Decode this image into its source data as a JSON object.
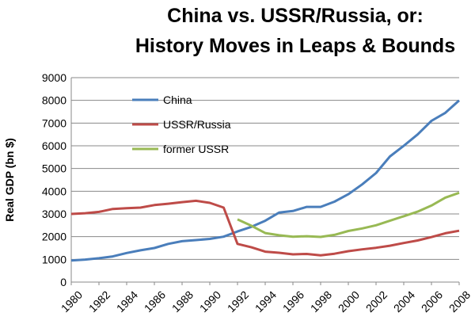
{
  "chart_data": {
    "type": "line",
    "title_line1": "China vs. USSR/Russia, or:",
    "title_line2": "History Moves in Leaps & Bounds",
    "ylabel": "Real GDP (bn $)",
    "xlabel": "",
    "ylim": [
      0,
      9000
    ],
    "yticks": [
      0,
      1000,
      2000,
      3000,
      4000,
      5000,
      6000,
      7000,
      8000,
      9000
    ],
    "xlim": [
      1980,
      2008
    ],
    "xticks": [
      1980,
      1982,
      1984,
      1986,
      1988,
      1990,
      1992,
      1994,
      1996,
      1998,
      2000,
      2002,
      2004,
      2006,
      2008
    ],
    "grid": "horizontal",
    "legend_position": "top-left inside plot",
    "series": [
      {
        "name": "China",
        "color": "#4a7ebb",
        "x": [
          1980,
          1981,
          1982,
          1983,
          1984,
          1985,
          1986,
          1987,
          1988,
          1989,
          1990,
          1991,
          1992,
          1993,
          1994,
          1995,
          1996,
          1997,
          1998,
          1999,
          2000,
          2001,
          2002,
          2003,
          2004,
          2005,
          2006,
          2007,
          2008
        ],
        "values": [
          950,
          990,
          1050,
          1130,
          1280,
          1400,
          1500,
          1680,
          1800,
          1850,
          1900,
          2000,
          2230,
          2430,
          2700,
          3060,
          3130,
          3310,
          3310,
          3540,
          3870,
          4300,
          4800,
          5530,
          6000,
          6500,
          7100,
          7450,
          8000
        ]
      },
      {
        "name": "USSR/Russia",
        "color": "#be4b48",
        "x": [
          1980,
          1981,
          1982,
          1983,
          1984,
          1985,
          1986,
          1987,
          1988,
          1989,
          1990,
          1991,
          1992,
          1993,
          1994,
          1995,
          1996,
          1997,
          1998,
          1999,
          2000,
          2001,
          2002,
          2003,
          2004,
          2005,
          2006,
          2007,
          2008
        ],
        "values": [
          3000,
          3030,
          3090,
          3220,
          3250,
          3280,
          3390,
          3450,
          3520,
          3580,
          3490,
          3280,
          1680,
          1530,
          1340,
          1290,
          1220,
          1240,
          1180,
          1250,
          1360,
          1440,
          1510,
          1600,
          1720,
          1830,
          1980,
          2150,
          2260
        ]
      },
      {
        "name": "former USSR",
        "color": "#98b954",
        "x": [
          1992,
          1993,
          1994,
          1995,
          1996,
          1997,
          1998,
          1999,
          2000,
          2001,
          2002,
          2003,
          2004,
          2005,
          2006,
          2007,
          2008
        ],
        "values": [
          2760,
          2480,
          2160,
          2060,
          2000,
          2020,
          1990,
          2080,
          2250,
          2360,
          2500,
          2700,
          2900,
          3100,
          3370,
          3720,
          3930
        ]
      }
    ]
  }
}
